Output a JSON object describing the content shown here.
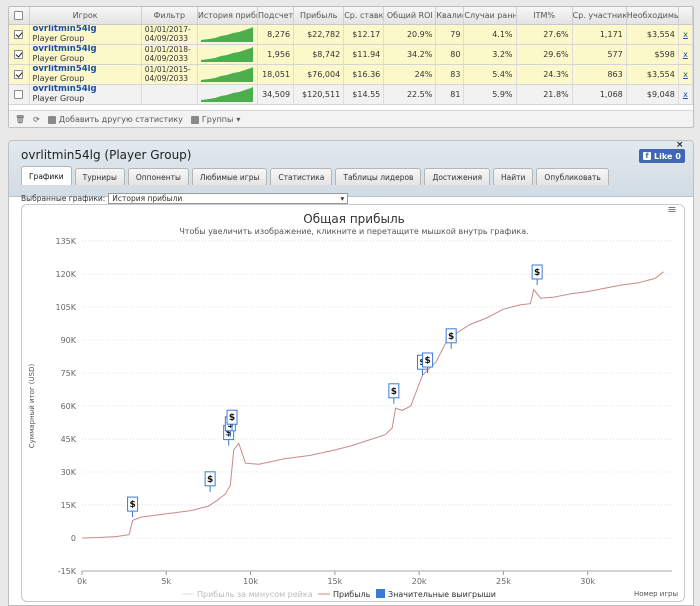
{
  "table": {
    "columns": [
      "",
      "Игрок",
      "Фильтр",
      "История прибы",
      "Подсчет",
      "Прибыль",
      "Ср. ставк.",
      "Общий ROI",
      "Квалиф",
      "Случаи ранн",
      "ITM%",
      "Ср. участник",
      "Необходимы",
      ""
    ],
    "rows": [
      {
        "checked": true,
        "name": "ovrlitmin54lg",
        "group": "Player Group",
        "filter_from": "01/01/2017-",
        "filter_to": "04/09/2033",
        "count": "8,276",
        "profit": "$22,782",
        "avg_stake": "$12.17",
        "roi": "20.9%",
        "qual": "79",
        "early": "4.1%",
        "itm": "27.6%",
        "avg_part": "1,171",
        "need": "$3,554",
        "x": "x"
      },
      {
        "checked": true,
        "name": "ovrlitmin54lg",
        "group": "Player Group",
        "filter_from": "01/01/2018-",
        "filter_to": "04/09/2033",
        "count": "1,956",
        "profit": "$8,742",
        "avg_stake": "$11.94",
        "roi": "34.2%",
        "qual": "80",
        "early": "3.2%",
        "itm": "29.6%",
        "avg_part": "577",
        "need": "$598",
        "x": "x"
      },
      {
        "checked": true,
        "name": "ovrlitmin54lg",
        "group": "Player Group",
        "filter_from": "01/01/2015-",
        "filter_to": "04/09/2033",
        "count": "18,051",
        "profit": "$76,004",
        "avg_stake": "$16.36",
        "roi": "24%",
        "qual": "83",
        "early": "5.4%",
        "itm": "24.3%",
        "avg_part": "863",
        "need": "$3,554",
        "x": "x"
      },
      {
        "checked": false,
        "name": "ovrlitmin54lg",
        "group": "Player Group",
        "filter_from": "",
        "filter_to": "",
        "count": "34,509",
        "profit": "$120,511",
        "avg_stake": "$14.55",
        "roi": "22.5%",
        "qual": "81",
        "early": "5.9%",
        "itm": "21.8%",
        "avg_part": "1,068",
        "need": "$9,048",
        "x": "x"
      }
    ],
    "toolbar": {
      "add_label": "Добавить другую статистику",
      "groups_label": "Группы"
    }
  },
  "panel": {
    "title": "ovrlitmin54lg (Player Group)",
    "like_label": "Like",
    "like_count": "0",
    "close": "×",
    "tabs": [
      "Графики",
      "Турниры",
      "Оппоненты",
      "Любимые игры",
      "Статистика",
      "Таблицы лидеров",
      "Достижения",
      "Найти",
      "Опубликовать"
    ],
    "graph_select_label": "Выбранные графики:",
    "graph_select_value": "История прибыли"
  },
  "chart_data": {
    "type": "line",
    "title": "Общая прибыль",
    "subtitle": "Чтобы увеличить изображение, кликните и перетащите мышкой внутрь графика.",
    "xlabel": "Номер игры",
    "ylabel": "Суммарный итог (USD)",
    "xlim": [
      0,
      35000
    ],
    "ylim": [
      -15000,
      135000
    ],
    "x_ticks": [
      "0k",
      "5k",
      "10k",
      "15k",
      "20k",
      "25k",
      "30k"
    ],
    "y_ticks": [
      "-15K",
      "0",
      "15K",
      "30K",
      "45K",
      "60K",
      "75K",
      "90K",
      "105K",
      "120K",
      "135K"
    ],
    "grid": true,
    "legend": "bottom-center",
    "series": [
      {
        "name": "Прибыль за минусом рейка",
        "color": "#dddddd",
        "x": [],
        "y": []
      },
      {
        "name": "Прибыль",
        "color": "#c98a8a",
        "x": [
          0,
          1000,
          2000,
          2800,
          3000,
          3500,
          4500,
          5500,
          6500,
          7500,
          8000,
          8500,
          8800,
          9000,
          9300,
          9700,
          10500,
          12000,
          13500,
          15000,
          16000,
          17000,
          18000,
          18400,
          18600,
          19000,
          19500,
          20200,
          20600,
          21000,
          21600,
          22000,
          23000,
          24000,
          25000,
          26000,
          26600,
          26800,
          27200,
          28000,
          29000,
          30000,
          31000,
          32000,
          33000,
          34000,
          34500
        ],
        "y": [
          0,
          200,
          600,
          1500,
          8000,
          9500,
          10500,
          11500,
          12500,
          14500,
          17000,
          20000,
          24000,
          40000,
          43000,
          34000,
          33500,
          36000,
          37500,
          40000,
          42000,
          44500,
          47000,
          50000,
          59000,
          58000,
          60000,
          74000,
          77000,
          80000,
          89000,
          92000,
          97000,
          100000,
          104000,
          106000,
          106500,
          113000,
          109000,
          109500,
          111000,
          112000,
          113500,
          115000,
          116000,
          118000,
          121000
        ]
      },
      {
        "name": "Значительные выигрыши",
        "color": "#3a7bd5",
        "marker": "$",
        "x": [
          3000,
          7600,
          8700,
          8800,
          8900,
          18500,
          20200,
          20500,
          21900,
          27000
        ],
        "y": [
          9500,
          21000,
          42000,
          46000,
          49000,
          61000,
          74000,
          75000,
          86000,
          115000
        ]
      }
    ]
  }
}
